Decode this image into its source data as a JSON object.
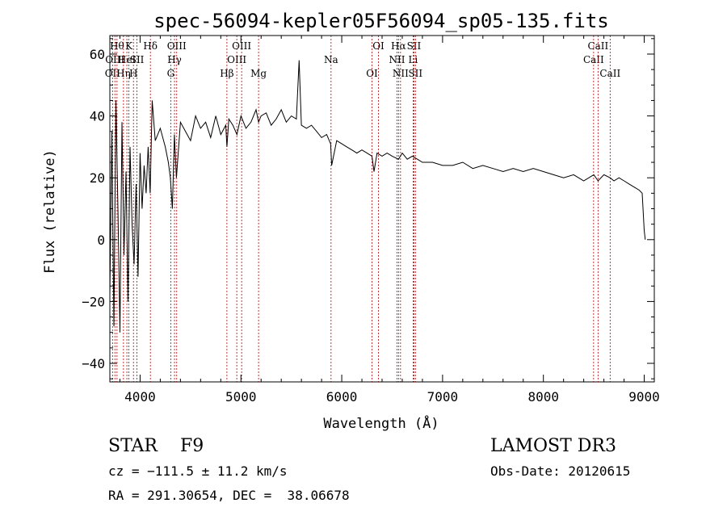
{
  "chart_data": {
    "type": "line",
    "title": "spec-56094-kepler05F56094_sp05-135.fits",
    "xlabel": "Wavelength (Å)",
    "ylabel": "Flux (relative)",
    "xlim": [
      3700,
      9100
    ],
    "ylim": [
      -46,
      66
    ],
    "xticks": [
      4000,
      5000,
      6000,
      7000,
      8000,
      9000
    ],
    "xtick_labels": [
      "4000",
      "5000",
      "6000",
      "7000",
      "8000",
      "9000"
    ],
    "yticks": [
      -40,
      -20,
      0,
      20,
      40,
      60
    ],
    "ytick_labels": [
      "−40",
      "−20",
      "0",
      "20",
      "40",
      "60"
    ],
    "series": [
      {
        "name": "flux",
        "x": [
          3700,
          3720,
          3740,
          3760,
          3780,
          3800,
          3820,
          3840,
          3860,
          3880,
          3900,
          3920,
          3940,
          3960,
          3980,
          4000,
          4020,
          4040,
          4060,
          4080,
          4100,
          4120,
          4150,
          4200,
          4250,
          4280,
          4300,
          4320,
          4340,
          4360,
          4400,
          4450,
          4500,
          4550,
          4600,
          4650,
          4700,
          4750,
          4800,
          4850,
          4861,
          4880,
          4920,
          4960,
          5000,
          5050,
          5100,
          5150,
          5175,
          5200,
          5250,
          5300,
          5350,
          5400,
          5450,
          5500,
          5550,
          5577,
          5600,
          5650,
          5700,
          5750,
          5800,
          5850,
          5890,
          5900,
          5950,
          6000,
          6050,
          6100,
          6150,
          6200,
          6250,
          6300,
          6320,
          6350,
          6400,
          6450,
          6500,
          6563,
          6600,
          6650,
          6700,
          6750,
          6800,
          6900,
          7000,
          7100,
          7200,
          7300,
          7400,
          7500,
          7600,
          7700,
          7800,
          7900,
          8000,
          8100,
          8200,
          8300,
          8400,
          8500,
          8542,
          8600,
          8662,
          8700,
          8750,
          8800,
          8850,
          8900,
          8950,
          8980,
          9000,
          9010
        ],
        "y": [
          -18,
          35,
          -28,
          45,
          10,
          -30,
          38,
          -5,
          22,
          -20,
          30,
          5,
          -8,
          18,
          -12,
          28,
          10,
          24,
          15,
          30,
          15,
          45,
          32,
          36,
          30,
          25,
          20,
          10,
          34,
          20,
          38,
          35,
          32,
          40,
          36,
          38,
          33,
          40,
          34,
          37,
          30,
          39,
          37,
          34,
          40,
          36,
          38,
          42,
          38,
          40,
          41,
          37,
          39,
          42,
          38,
          40,
          39,
          58,
          37,
          36,
          37,
          35,
          33,
          34,
          31,
          24,
          32,
          31,
          30,
          29,
          28,
          29,
          28,
          27,
          22,
          28,
          27,
          28,
          27,
          26,
          28,
          26,
          27,
          26,
          25,
          25,
          24,
          24,
          25,
          23,
          24,
          23,
          22,
          23,
          22,
          23,
          22,
          21,
          20,
          21,
          19,
          21,
          19,
          21,
          20,
          19,
          20,
          19,
          18,
          17,
          16,
          15,
          3,
          0
        ]
      }
    ],
    "line_markers": [
      {
        "x": 3727,
        "label": "OII",
        "row": 2
      },
      {
        "x": 3750,
        "label": "OIII",
        "row": 1
      },
      {
        "x": 3771,
        "label": "Hθ",
        "row": 0
      },
      {
        "x": 3835,
        "label": "Hη",
        "row": 2
      },
      {
        "x": 3869,
        "label": "HeI",
        "row": 1
      },
      {
        "x": 3889,
        "label": "K",
        "row": 0
      },
      {
        "x": 3934,
        "label": "H",
        "row": 2
      },
      {
        "x": 3969,
        "label": "SII",
        "row": 1
      },
      {
        "x": 4102,
        "label": "Hδ",
        "row": 0
      },
      {
        "x": 4304,
        "label": "G",
        "row": 2
      },
      {
        "x": 4341,
        "label": "Hγ",
        "row": 1
      },
      {
        "x": 4363,
        "label": "OIII",
        "row": 0
      },
      {
        "x": 4861,
        "label": "Hβ",
        "row": 2
      },
      {
        "x": 4959,
        "label": "OIII",
        "row": 1
      },
      {
        "x": 5007,
        "label": "OIII",
        "row": 0
      },
      {
        "x": 5175,
        "label": "Mg",
        "row": 2
      },
      {
        "x": 5894,
        "label": "Na",
        "row": 1
      },
      {
        "x": 6300,
        "label": "OI",
        "row": 2
      },
      {
        "x": 6364,
        "label": "OI",
        "row": 0
      },
      {
        "x": 6548,
        "label": "NII",
        "row": 1
      },
      {
        "x": 6563,
        "label": "Hα",
        "row": 0
      },
      {
        "x": 6583,
        "label": "NII",
        "row": 2
      },
      {
        "x": 6708,
        "label": "Li",
        "row": 1
      },
      {
        "x": 6716,
        "label": "SII",
        "row": 0
      },
      {
        "x": 6731,
        "label": "SII",
        "row": 2
      },
      {
        "x": 8498,
        "label": "CaII",
        "row": 1
      },
      {
        "x": 8542,
        "label": "CaII",
        "row": 0
      },
      {
        "x": 8662,
        "label": "CaII",
        "row": 2
      }
    ]
  },
  "info": {
    "class_text": "STAR    F9",
    "survey": "LAMOST DR3",
    "cz": "cz = −111.5 ± 11.2 km/s",
    "obs_date": "Obs-Date: 20120615",
    "coords": "RA = 291.30654, DEC =  38.06678"
  }
}
